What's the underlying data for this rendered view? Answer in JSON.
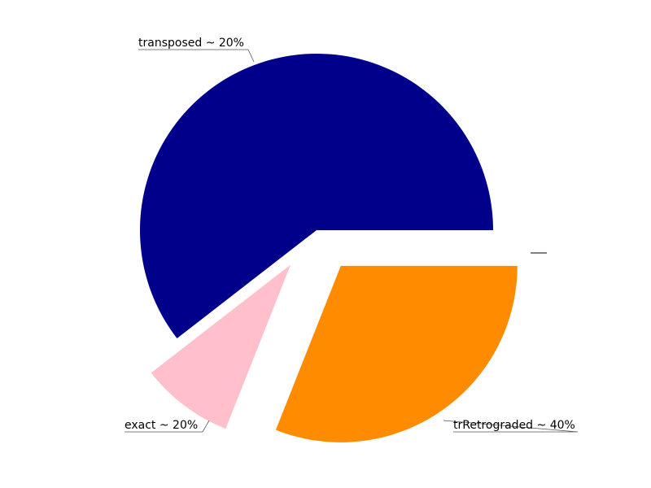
{
  "chart_data": {
    "type": "pie",
    "start_angle_deg": 0,
    "direction": "counterclockwise",
    "slices": [
      {
        "label": "transposed ~ 20%",
        "value": 60.5,
        "color": "#00008b",
        "exploded": false
      },
      {
        "label": "exact ~ 20%",
        "value": 8.5,
        "color": "#ffc0cb",
        "exploded": true
      },
      {
        "label": "trRetrograded ~ 40%",
        "value": 31.0,
        "color": "#ff8c00",
        "exploded": true
      },
      {
        "label": "",
        "value": 0,
        "color": "#ffffff",
        "exploded": true
      }
    ]
  }
}
